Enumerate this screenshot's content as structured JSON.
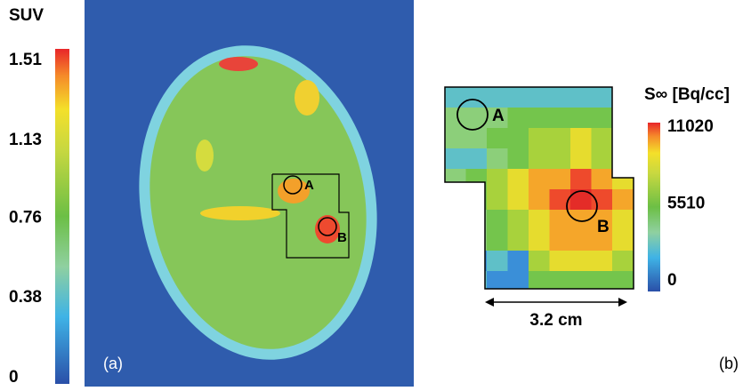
{
  "panel_a": {
    "colorbar": {
      "title": "SUV",
      "lim": [
        0,
        1.51
      ],
      "ticks": [
        1.51,
        1.13,
        0.76,
        0.38,
        0
      ]
    },
    "markers": [
      "A",
      "B"
    ],
    "label": "(a)"
  },
  "panel_b": {
    "colorbar": {
      "title": "S∞ [Bq/cc]",
      "lim": [
        0,
        11020
      ],
      "ticks": [
        11020,
        5510,
        0
      ]
    },
    "markers": [
      "A",
      "B"
    ],
    "scale": "3.2 cm",
    "label": "(b)"
  }
}
